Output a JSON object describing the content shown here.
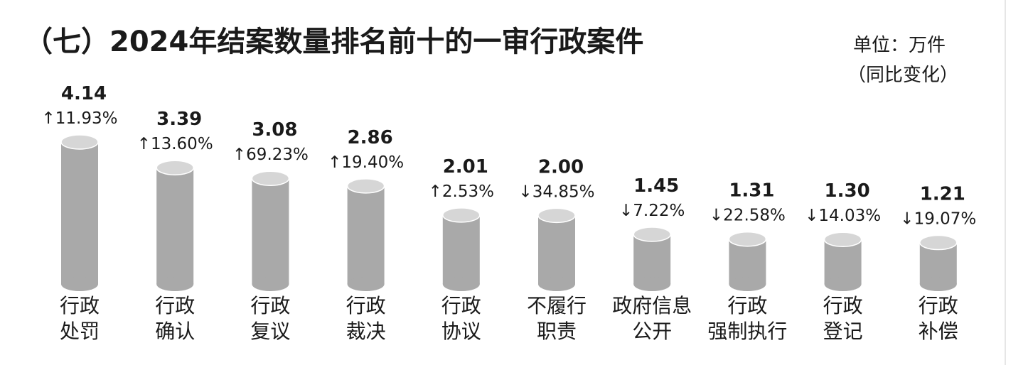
{
  "chart_data": {
    "type": "bar",
    "title": "（七）2024年结案数量排名前十的一审行政案件",
    "unit_label": "单位：万件",
    "change_label": "（同比变化）",
    "categories": [
      [
        "行政",
        "处罚"
      ],
      [
        "行政",
        "确认"
      ],
      [
        "行政",
        "复议"
      ],
      [
        "行政",
        "裁决"
      ],
      [
        "行政",
        "协议"
      ],
      [
        "不履行",
        "职责"
      ],
      [
        "政府信息",
        "公开"
      ],
      [
        "行政",
        "强制执行"
      ],
      [
        "行政",
        "登记"
      ],
      [
        "行政",
        "补偿"
      ]
    ],
    "values": [
      4.14,
      3.39,
      3.08,
      2.86,
      2.01,
      2.0,
      1.45,
      1.31,
      1.3,
      1.21
    ],
    "value_labels": [
      "4.14",
      "3.39",
      "3.08",
      "2.86",
      "2.01",
      "2.00",
      "1.45",
      "1.31",
      "1.30",
      "1.21"
    ],
    "changes": [
      "↑11.93%",
      "↑13.60%",
      "↑69.23%",
      "↑19.40%",
      "↑2.53%",
      "↓34.85%",
      "↓7.22%",
      "↓22.58%",
      "↓14.03%",
      "↓19.07%"
    ],
    "colors": {
      "bar_body": "#a9a9a9",
      "bar_top": "#d6d6d6",
      "bar_edge": "#ffffff",
      "text": "#1a1a1a"
    }
  }
}
